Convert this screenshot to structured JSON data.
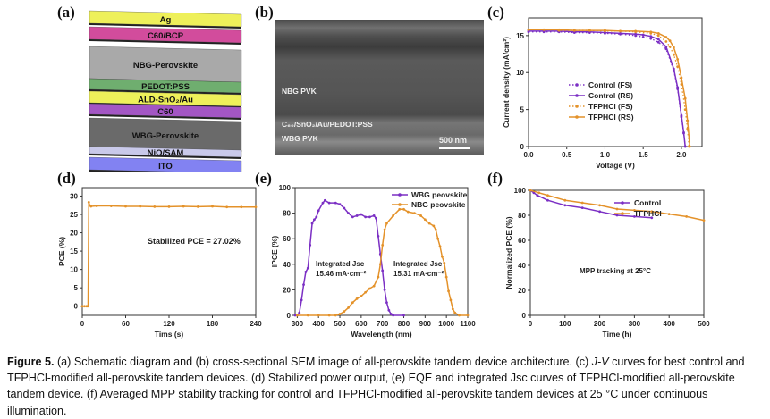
{
  "panels": {
    "a": "(a)",
    "b": "(b)",
    "c": "(c)",
    "d": "(d)",
    "e": "(e)",
    "f": "(f)"
  },
  "stack": {
    "layers": [
      {
        "label": "Ag",
        "color": "#eef05a"
      },
      {
        "label": "C60/BCP",
        "color": "#d24c9c"
      },
      {
        "label": "NBG-Perovskite",
        "color": "#a9a9a9"
      },
      {
        "label": "PEDOT:PSS",
        "color": "#6fae6f"
      },
      {
        "label": "ALD-SnO₂/Au",
        "color": "#eef05a"
      },
      {
        "label": "C60",
        "color": "#a356c4"
      },
      {
        "label": "WBG-Perovskite",
        "color": "#6a6a6a"
      },
      {
        "label": "NiO/SAM",
        "color": "#c9c9ea"
      },
      {
        "label": "ITO",
        "color": "#8282f2"
      }
    ]
  },
  "sem": {
    "nbg": "NBG PVK",
    "interlayer": "C₆₀/SnO₂/Au/PEDOT:PSS",
    "wbg": "WBG PVK",
    "scale": "500 nm"
  },
  "chart_data": [
    {
      "id": "c",
      "type": "line",
      "xlabel": "Voltage (V)",
      "ylabel": "Current density (mA/cm²)",
      "xlim": [
        0,
        2.27
      ],
      "ylim": [
        0,
        17.4
      ],
      "xticks": [
        0,
        0.5,
        1.0,
        1.5,
        2.0
      ],
      "xtick_labels": [
        "0.0",
        "0.5",
        "1.0",
        "1.5",
        "2.0"
      ],
      "yticks": [
        0,
        5,
        10,
        15
      ],
      "legend": "center-left",
      "series": [
        {
          "name": "Control (FS)",
          "color": "#7b2fc4",
          "dashed": true,
          "x": [
            0,
            0.2,
            0.4,
            0.6,
            0.8,
            1.0,
            1.2,
            1.4,
            1.5,
            1.6,
            1.7,
            1.8,
            1.9,
            1.95,
            2.0,
            2.03,
            2.05
          ],
          "y": [
            15.5,
            15.5,
            15.5,
            15.4,
            15.4,
            15.3,
            15.2,
            15.0,
            14.8,
            14.6,
            14.1,
            13.2,
            10.3,
            7.8,
            4.0,
            1.8,
            0
          ]
        },
        {
          "name": "Control (RS)",
          "color": "#7b2fc4",
          "dashed": false,
          "x": [
            0,
            0.2,
            0.4,
            0.6,
            0.8,
            1.0,
            1.2,
            1.4,
            1.5,
            1.6,
            1.7,
            1.8,
            1.9,
            1.95,
            2.0,
            2.03,
            2.05
          ],
          "y": [
            15.6,
            15.6,
            15.6,
            15.5,
            15.5,
            15.4,
            15.3,
            15.2,
            15.1,
            14.9,
            14.5,
            13.5,
            10.5,
            8.0,
            4.2,
            1.9,
            0
          ]
        },
        {
          "name": "TFPHCl (FS)",
          "color": "#e4922a",
          "dashed": true,
          "x": [
            0,
            0.2,
            0.4,
            0.6,
            0.8,
            1.0,
            1.2,
            1.4,
            1.6,
            1.7,
            1.8,
            1.85,
            1.9,
            1.95,
            2.0,
            2.05,
            2.08,
            2.1
          ],
          "y": [
            15.8,
            15.8,
            15.7,
            15.7,
            15.7,
            15.6,
            15.6,
            15.5,
            15.3,
            15.0,
            14.2,
            13.5,
            12.4,
            10.8,
            8.4,
            5.0,
            2.4,
            0
          ]
        },
        {
          "name": "TFPHCl  (RS)",
          "color": "#e4922a",
          "dashed": false,
          "x": [
            0,
            0.2,
            0.4,
            0.6,
            0.8,
            1.0,
            1.2,
            1.4,
            1.6,
            1.7,
            1.8,
            1.85,
            1.9,
            1.95,
            2.0,
            2.05,
            2.08,
            2.11
          ],
          "y": [
            15.8,
            15.8,
            15.8,
            15.7,
            15.7,
            15.7,
            15.6,
            15.6,
            15.5,
            15.3,
            14.8,
            14.3,
            13.4,
            11.8,
            9.3,
            6.5,
            3.5,
            0
          ]
        }
      ]
    },
    {
      "id": "d",
      "type": "line",
      "xlabel": "Tims (s)",
      "ylabel": "PCE (%)",
      "xlim": [
        0,
        240
      ],
      "ylim": [
        -2.5,
        32.3
      ],
      "xticks": [
        0,
        60,
        120,
        180,
        240
      ],
      "yticks": [
        0,
        5,
        10,
        15,
        20,
        25,
        30
      ],
      "annotation": "Stabilized PCE = 27.02%",
      "series": [
        {
          "color": "#e4922a",
          "dashed": false,
          "x": [
            0,
            3,
            6,
            8,
            9,
            10,
            12,
            20,
            40,
            60,
            80,
            100,
            120,
            140,
            160,
            180,
            200,
            220,
            240
          ],
          "y": [
            0,
            0,
            0,
            0,
            28.3,
            27.5,
            27.2,
            27.3,
            27.3,
            27.2,
            27.2,
            27.1,
            27.1,
            27.2,
            27.1,
            27.2,
            27.0,
            27.0,
            27.0
          ]
        }
      ]
    },
    {
      "id": "e",
      "type": "line",
      "xlabel": "Wavelength (nm)",
      "ylabel": "IPCE (%)",
      "xlim": [
        290,
        1100
      ],
      "ylim": [
        0,
        100
      ],
      "xticks": [
        300,
        400,
        500,
        600,
        700,
        800,
        900,
        1000,
        1100
      ],
      "yticks": [
        0,
        20,
        40,
        60,
        80,
        100
      ],
      "legend": "top-right",
      "annotations": [
        "Integrated Jsc",
        "15.46 mA·cm⁻²",
        "Integrated Jsc",
        "15.31 mA·cm⁻²"
      ],
      "series": [
        {
          "name": "WBG peovskite",
          "color": "#7b2fc4",
          "dashed": false,
          "x": [
            290,
            300,
            310,
            320,
            330,
            340,
            350,
            360,
            370,
            380,
            390,
            400,
            420,
            430,
            450,
            480,
            500,
            520,
            540,
            560,
            580,
            600,
            620,
            640,
            660,
            670,
            680,
            690,
            700,
            710,
            720,
            730,
            740,
            750,
            800
          ],
          "y": [
            0,
            0,
            2,
            12,
            24,
            34,
            37,
            55,
            72,
            75,
            77,
            82,
            88,
            90,
            88,
            88,
            87,
            84,
            80,
            77,
            78,
            79,
            77,
            77,
            78,
            76,
            62,
            48,
            35,
            20,
            10,
            4,
            1,
            0,
            0
          ]
        },
        {
          "name": "NBG peovskite",
          "color": "#e4922a",
          "dashed": false,
          "x": [
            300,
            350,
            400,
            450,
            480,
            500,
            520,
            540,
            560,
            580,
            600,
            620,
            640,
            660,
            680,
            690,
            700,
            710,
            720,
            750,
            780,
            800,
            820,
            850,
            880,
            900,
            920,
            940,
            950,
            960,
            970,
            980,
            990,
            1000,
            1010,
            1020,
            1030,
            1040,
            1060,
            1100
          ],
          "y": [
            0,
            0,
            0,
            0,
            0,
            1,
            3,
            6,
            10,
            13,
            15,
            18,
            21,
            23,
            30,
            40,
            55,
            67,
            72,
            78,
            83,
            83,
            81,
            80,
            78,
            75,
            72,
            70,
            67,
            60,
            54,
            46,
            41,
            30,
            19,
            12,
            5,
            2,
            0,
            0
          ]
        }
      ]
    },
    {
      "id": "f",
      "type": "line",
      "xlabel": "Time (h)",
      "ylabel": "Normalized PCE (%)",
      "xlim": [
        0,
        500
      ],
      "ylim": [
        0,
        100
      ],
      "xticks": [
        0,
        100,
        200,
        300,
        400,
        500
      ],
      "yticks": [
        0,
        20,
        40,
        60,
        80,
        100
      ],
      "legend": "top-right",
      "annotation": "MPP tracking at 25°C",
      "series": [
        {
          "name": "Control",
          "color": "#7b2fc4",
          "dashed": false,
          "x": [
            0,
            10,
            20,
            50,
            100,
            150,
            200,
            250,
            300,
            350
          ],
          "y": [
            100,
            98,
            96,
            92,
            88,
            86,
            83,
            80,
            79,
            78
          ]
        },
        {
          "name": "TFPHCl",
          "color": "#e4922a",
          "dashed": false,
          "x": [
            0,
            25,
            50,
            100,
            150,
            200,
            250,
            300,
            350,
            400,
            450,
            500
          ],
          "y": [
            100,
            98,
            96,
            92,
            90,
            88,
            85,
            84,
            83,
            81,
            79,
            76
          ]
        }
      ]
    }
  ],
  "caption": {
    "label": "Figure 5.",
    "part1": "  (a) Schematic diagram and (b) cross-sectional SEM image of all-perovskite tandem device architecture. (c) ",
    "italic": "J-V",
    "part2": " curves for best control and TFPHCl-modified all-perovskite tandem devices. (d) Stabilized power output, (e) EQE and integrated Jsc curves of TFPHCl-modified all-perovskite tandem device. (f) Averaged MPP stability tracking for control and TFPHCl-modified all-perovskite tandem devices at 25 °C under continuous illumination."
  }
}
